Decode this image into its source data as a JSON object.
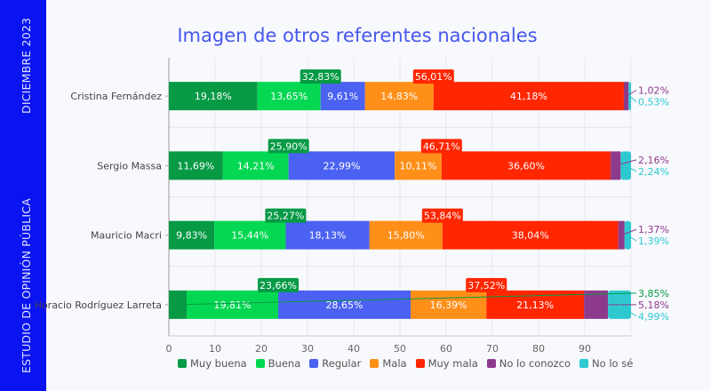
{
  "sidebar": {
    "top_label": "DICIEMBRE 2023",
    "bottom_label": "ESTUDIO DE OPINIÓN PÚBLICA",
    "color": "#0a14f0"
  },
  "chart_data": {
    "type": "bar",
    "orientation": "horizontal",
    "stacked": true,
    "title": "Imagen de otros referentes nacionales",
    "xlabel": "",
    "ylabel": "",
    "xlim": [
      0,
      100
    ],
    "x_ticks": [
      "0",
      "10",
      "20",
      "30",
      "40",
      "50",
      "60",
      "70",
      "80",
      "90"
    ],
    "grid": true,
    "legend_position": "bottom",
    "categories": [
      "Cristina Fernández",
      "Sergio Massa",
      "Mauricio Macri",
      "Horacio Rodríguez Larreta"
    ],
    "series": [
      {
        "name": "Muy buena",
        "color": "#069a45",
        "values": [
          19.18,
          11.69,
          9.83,
          3.85
        ],
        "labels": [
          "19,18%",
          "11,69%",
          "9,83%",
          "3,85%"
        ]
      },
      {
        "name": "Buena",
        "color": "#04d852",
        "values": [
          13.65,
          14.21,
          15.44,
          19.81
        ],
        "labels": [
          "13,65%",
          "14,21%",
          "15,44%",
          "19,81%"
        ]
      },
      {
        "name": "Regular",
        "color": "#4b61f2",
        "values": [
          9.61,
          22.99,
          18.13,
          28.65
        ],
        "labels": [
          "9,61%",
          "22,99%",
          "18,13%",
          "28,65%"
        ]
      },
      {
        "name": "Mala",
        "color": "#ff8f18",
        "values": [
          14.83,
          10.11,
          15.8,
          16.39
        ],
        "labels": [
          "14,83%",
          "10,11%",
          "15,80%",
          "16,39%"
        ]
      },
      {
        "name": "Muy mala",
        "color": "#ff2600",
        "values": [
          41.18,
          36.6,
          38.04,
          21.13
        ],
        "labels": [
          "41,18%",
          "36,60%",
          "38,04%",
          "21,13%"
        ]
      },
      {
        "name": "No lo conozco",
        "color": "#8e3a8c",
        "values": [
          1.02,
          2.16,
          1.37,
          5.18
        ],
        "labels": [
          "1,02%",
          "2,16%",
          "1,37%",
          "5,18%"
        ]
      },
      {
        "name": "No lo sé",
        "color": "#2ec9d0",
        "values": [
          0.53,
          2.24,
          1.39,
          4.99
        ],
        "labels": [
          "0,53%",
          "2,24%",
          "1,39%",
          "4,99%"
        ]
      }
    ],
    "annotations": {
      "positive_totals": {
        "color": "#069a45",
        "values": [
          32.83,
          25.9,
          25.27,
          23.66
        ],
        "labels": [
          "32,83%",
          "25,90%",
          "25,27%",
          "23,66%"
        ]
      },
      "negative_totals": {
        "color": "#ff2600",
        "values": [
          56.01,
          46.71,
          53.84,
          37.52
        ],
        "labels": [
          "56,01%",
          "46,71%",
          "53,84%",
          "37,52%"
        ]
      }
    }
  }
}
